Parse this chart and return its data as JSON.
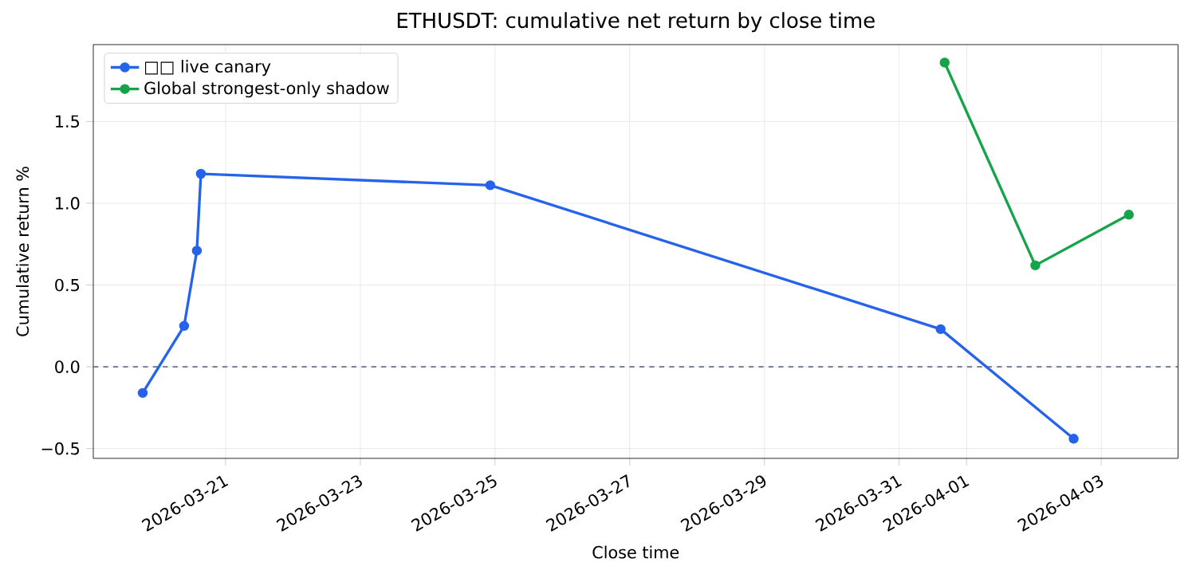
{
  "chart_data": {
    "type": "line",
    "title": "ETHUSDT: cumulative net return by close time",
    "xlabel": "Close time",
    "ylabel": "Cumulative return %",
    "xlim": [
      "2026-03-19T00:52",
      "2026-04-04T03:22"
    ],
    "ylim": [
      -0.56,
      1.97
    ],
    "xticks": [
      "2026-03-21",
      "2026-03-23",
      "2026-03-25",
      "2026-03-27",
      "2026-03-29",
      "2026-03-31",
      "2026-04-01",
      "2026-04-03"
    ],
    "yticks": [
      {
        "value": -0.5,
        "label": "−0.5"
      },
      {
        "value": 0,
        "label": "0.0"
      },
      {
        "value": 0.5,
        "label": "0.5"
      },
      {
        "value": 1,
        "label": "1.0"
      },
      {
        "value": 1.5,
        "label": "1.5"
      }
    ],
    "series": [
      {
        "name": "□□ live canary",
        "color": "#2563eb",
        "x": [
          "2026-03-19T18:28",
          "2026-03-20T09:14",
          "2026-03-20T13:46",
          "2026-03-20T15:12",
          "2026-03-24T22:18",
          "2026-03-31T14:46",
          "2026-04-02T14:10"
        ],
        "values": [
          -0.16,
          0.25,
          0.71,
          1.18,
          1.11,
          0.23,
          -0.44
        ]
      },
      {
        "name": "Global strongest-only shadow",
        "color": "#16a34a",
        "x": [
          "2026-03-31T16:12",
          "2026-04-02T00:30",
          "2026-04-03T09:50"
        ],
        "values": [
          1.86,
          0.62,
          0.93
        ]
      }
    ],
    "ref_lines": [
      {
        "axis": "y",
        "value": 0,
        "color": "#64748b",
        "line_style": "dashed"
      }
    ],
    "grid": true,
    "legend": "top left",
    "marker": "circle",
    "line_style": "solid"
  }
}
